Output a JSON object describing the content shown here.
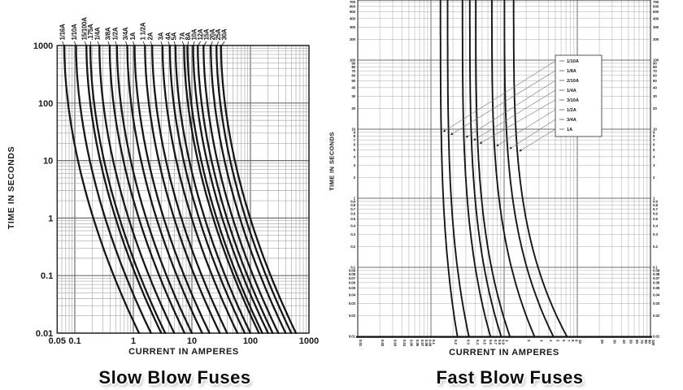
{
  "colors": {
    "background": "#ffffff",
    "curve": "#161616",
    "grid_minor": "#a8a8a8",
    "grid_major": "#6e6e6e",
    "axis_border": "#2a2a2a",
    "text": "#1a1a1a",
    "leader_line": "#777777"
  },
  "chart_data": [
    {
      "id": "slow-blow",
      "type": "line",
      "title": "Slow Blow Fuses",
      "xlabel": "CURRENT IN AMPERES",
      "ylabel": "TIME IN SECONDS",
      "x_scale": "log",
      "y_scale": "log",
      "xlim": [
        0.05,
        1000
      ],
      "ylim": [
        0.01,
        1000
      ],
      "grid": "log-log with minor lines",
      "x_ticks": [
        "0.05",
        "0.1",
        "1",
        "10",
        "100",
        "1000"
      ],
      "y_ticks": [
        "1000",
        "100",
        "10",
        "1",
        "0.1",
        "0.01"
      ],
      "curve_shape_k": 1.85,
      "series": [
        {
          "label": "1/16A",
          "rating_amps": 0.0625,
          "amps_at_1000s": 0.066,
          "amps_at_0_01s": 1.25
        },
        {
          "label": "1/10A",
          "rating_amps": 0.1,
          "amps_at_1000s": 0.105,
          "amps_at_0_01s": 2.0
        },
        {
          "label": "15/100A",
          "rating_amps": 0.15,
          "amps_at_1000s": 0.158,
          "amps_at_0_01s": 3.0
        },
        {
          "label": ".175A",
          "rating_amps": 0.175,
          "amps_at_1000s": 0.184,
          "amps_at_0_01s": 3.5
        },
        {
          "label": "1/4A",
          "rating_amps": 0.25,
          "amps_at_1000s": 0.263,
          "amps_at_0_01s": 5.0
        },
        {
          "label": "3/8A",
          "rating_amps": 0.375,
          "amps_at_1000s": 0.394,
          "amps_at_0_01s": 7.5
        },
        {
          "label": "1/2A",
          "rating_amps": 0.5,
          "amps_at_1000s": 0.525,
          "amps_at_0_01s": 10
        },
        {
          "label": "3/4A",
          "rating_amps": 0.75,
          "amps_at_1000s": 0.788,
          "amps_at_0_01s": 15
        },
        {
          "label": "1A",
          "rating_amps": 1,
          "amps_at_1000s": 1.05,
          "amps_at_0_01s": 20
        },
        {
          "label": "1 1/2A",
          "rating_amps": 1.5,
          "amps_at_1000s": 1.58,
          "amps_at_0_01s": 30
        },
        {
          "label": "2A",
          "rating_amps": 2,
          "amps_at_1000s": 2.1,
          "amps_at_0_01s": 40
        },
        {
          "label": "3A",
          "rating_amps": 3,
          "amps_at_1000s": 3.15,
          "amps_at_0_01s": 60
        },
        {
          "label": "4A",
          "rating_amps": 4,
          "amps_at_1000s": 4.2,
          "amps_at_0_01s": 80
        },
        {
          "label": "5A",
          "rating_amps": 5,
          "amps_at_1000s": 5.25,
          "amps_at_0_01s": 100
        },
        {
          "label": "7A",
          "rating_amps": 7,
          "amps_at_1000s": 7.35,
          "amps_at_0_01s": 140
        },
        {
          "label": "8A",
          "rating_amps": 8,
          "amps_at_1000s": 8.4,
          "amps_at_0_01s": 160
        },
        {
          "label": "10A",
          "rating_amps": 10,
          "amps_at_1000s": 10.5,
          "amps_at_0_01s": 200
        },
        {
          "label": "12A",
          "rating_amps": 12,
          "amps_at_1000s": 12.6,
          "amps_at_0_01s": 240
        },
        {
          "label": "15A",
          "rating_amps": 15,
          "amps_at_1000s": 15.8,
          "amps_at_0_01s": 300
        },
        {
          "label": "20A",
          "rating_amps": 20,
          "amps_at_1000s": 21,
          "amps_at_0_01s": 400
        },
        {
          "label": "25A",
          "rating_amps": 25,
          "amps_at_1000s": 26.3,
          "amps_at_0_01s": 500
        },
        {
          "label": "30A",
          "rating_amps": 30,
          "amps_at_1000s": 31.5,
          "amps_at_0_01s": 600
        }
      ],
      "series_label_position": "rotated above curve tops"
    },
    {
      "id": "fast-blow",
      "type": "line",
      "title": "Fast Blow Fuses",
      "xlabel": "CURRENT IN AMPERES",
      "ylabel": "TIME IN SECONDS",
      "x_scale": "log",
      "y_scale": "log",
      "xlim": [
        0.01,
        100
      ],
      "ylim": [
        0.01,
        1000
      ],
      "grid": "log-log with minor lines",
      "x_ticks": [
        "0.01",
        "0.02",
        "0.03",
        "0.04",
        "0.05",
        "0.06",
        "0.07",
        "0.08",
        "0.09",
        "0.1",
        "0.2",
        "0.3",
        "0.4",
        "0.5",
        "0.6",
        "0.7",
        "0.8",
        "0.9",
        "1",
        "2",
        "3",
        "4",
        "5",
        "6",
        "7",
        "8",
        "9",
        "10",
        "20",
        "30",
        "40",
        "50",
        "60",
        "70",
        "80",
        "90",
        "100"
      ],
      "y_ticks": [
        "1000",
        "900",
        "800",
        "700",
        "600",
        "500",
        "400",
        "300",
        "200",
        "100",
        "90",
        "80",
        "70",
        "60",
        "50",
        "40",
        "30",
        "20",
        "10",
        "9",
        "8",
        "7",
        "6",
        "5",
        "4",
        "3",
        "2",
        "1",
        "0.9",
        "0.8",
        "0.7",
        "0.6",
        "0.5",
        "0.4",
        "0.3",
        "0.2",
        "0.1",
        "0.09",
        "0.08",
        "0.07",
        "0.06",
        "0.05",
        "0.04",
        "0.03",
        "0.02",
        "0.01"
      ],
      "y_ticks_both_sides": true,
      "curve_shape_k": 3.5,
      "legend_position": "upper right box with leader arrows to curves",
      "series": [
        {
          "label": "1/10A",
          "rating_amps": 0.1,
          "amps_at_1000s": 0.135,
          "amps_at_0_01s": 0.23
        },
        {
          "label": "1/8A",
          "rating_amps": 0.125,
          "amps_at_1000s": 0.169,
          "amps_at_0_01s": 0.33
        },
        {
          "label": "2/10A",
          "rating_amps": 0.2,
          "amps_at_1000s": 0.27,
          "amps_at_0_01s": 0.65
        },
        {
          "label": "1/4A",
          "rating_amps": 0.25,
          "amps_at_1000s": 0.34,
          "amps_at_0_01s": 0.91
        },
        {
          "label": "3/10A",
          "rating_amps": 0.3,
          "amps_at_1000s": 0.41,
          "amps_at_0_01s": 1.2
        },
        {
          "label": "1/2A",
          "rating_amps": 0.5,
          "amps_at_1000s": 0.68,
          "amps_at_0_01s": 2.6
        },
        {
          "label": "3/4A",
          "rating_amps": 0.75,
          "amps_at_1000s": 1.01,
          "amps_at_0_01s": 4.7
        },
        {
          "label": "1A",
          "rating_amps": 1,
          "amps_at_1000s": 1.35,
          "amps_at_0_01s": 7.2
        }
      ]
    }
  ]
}
